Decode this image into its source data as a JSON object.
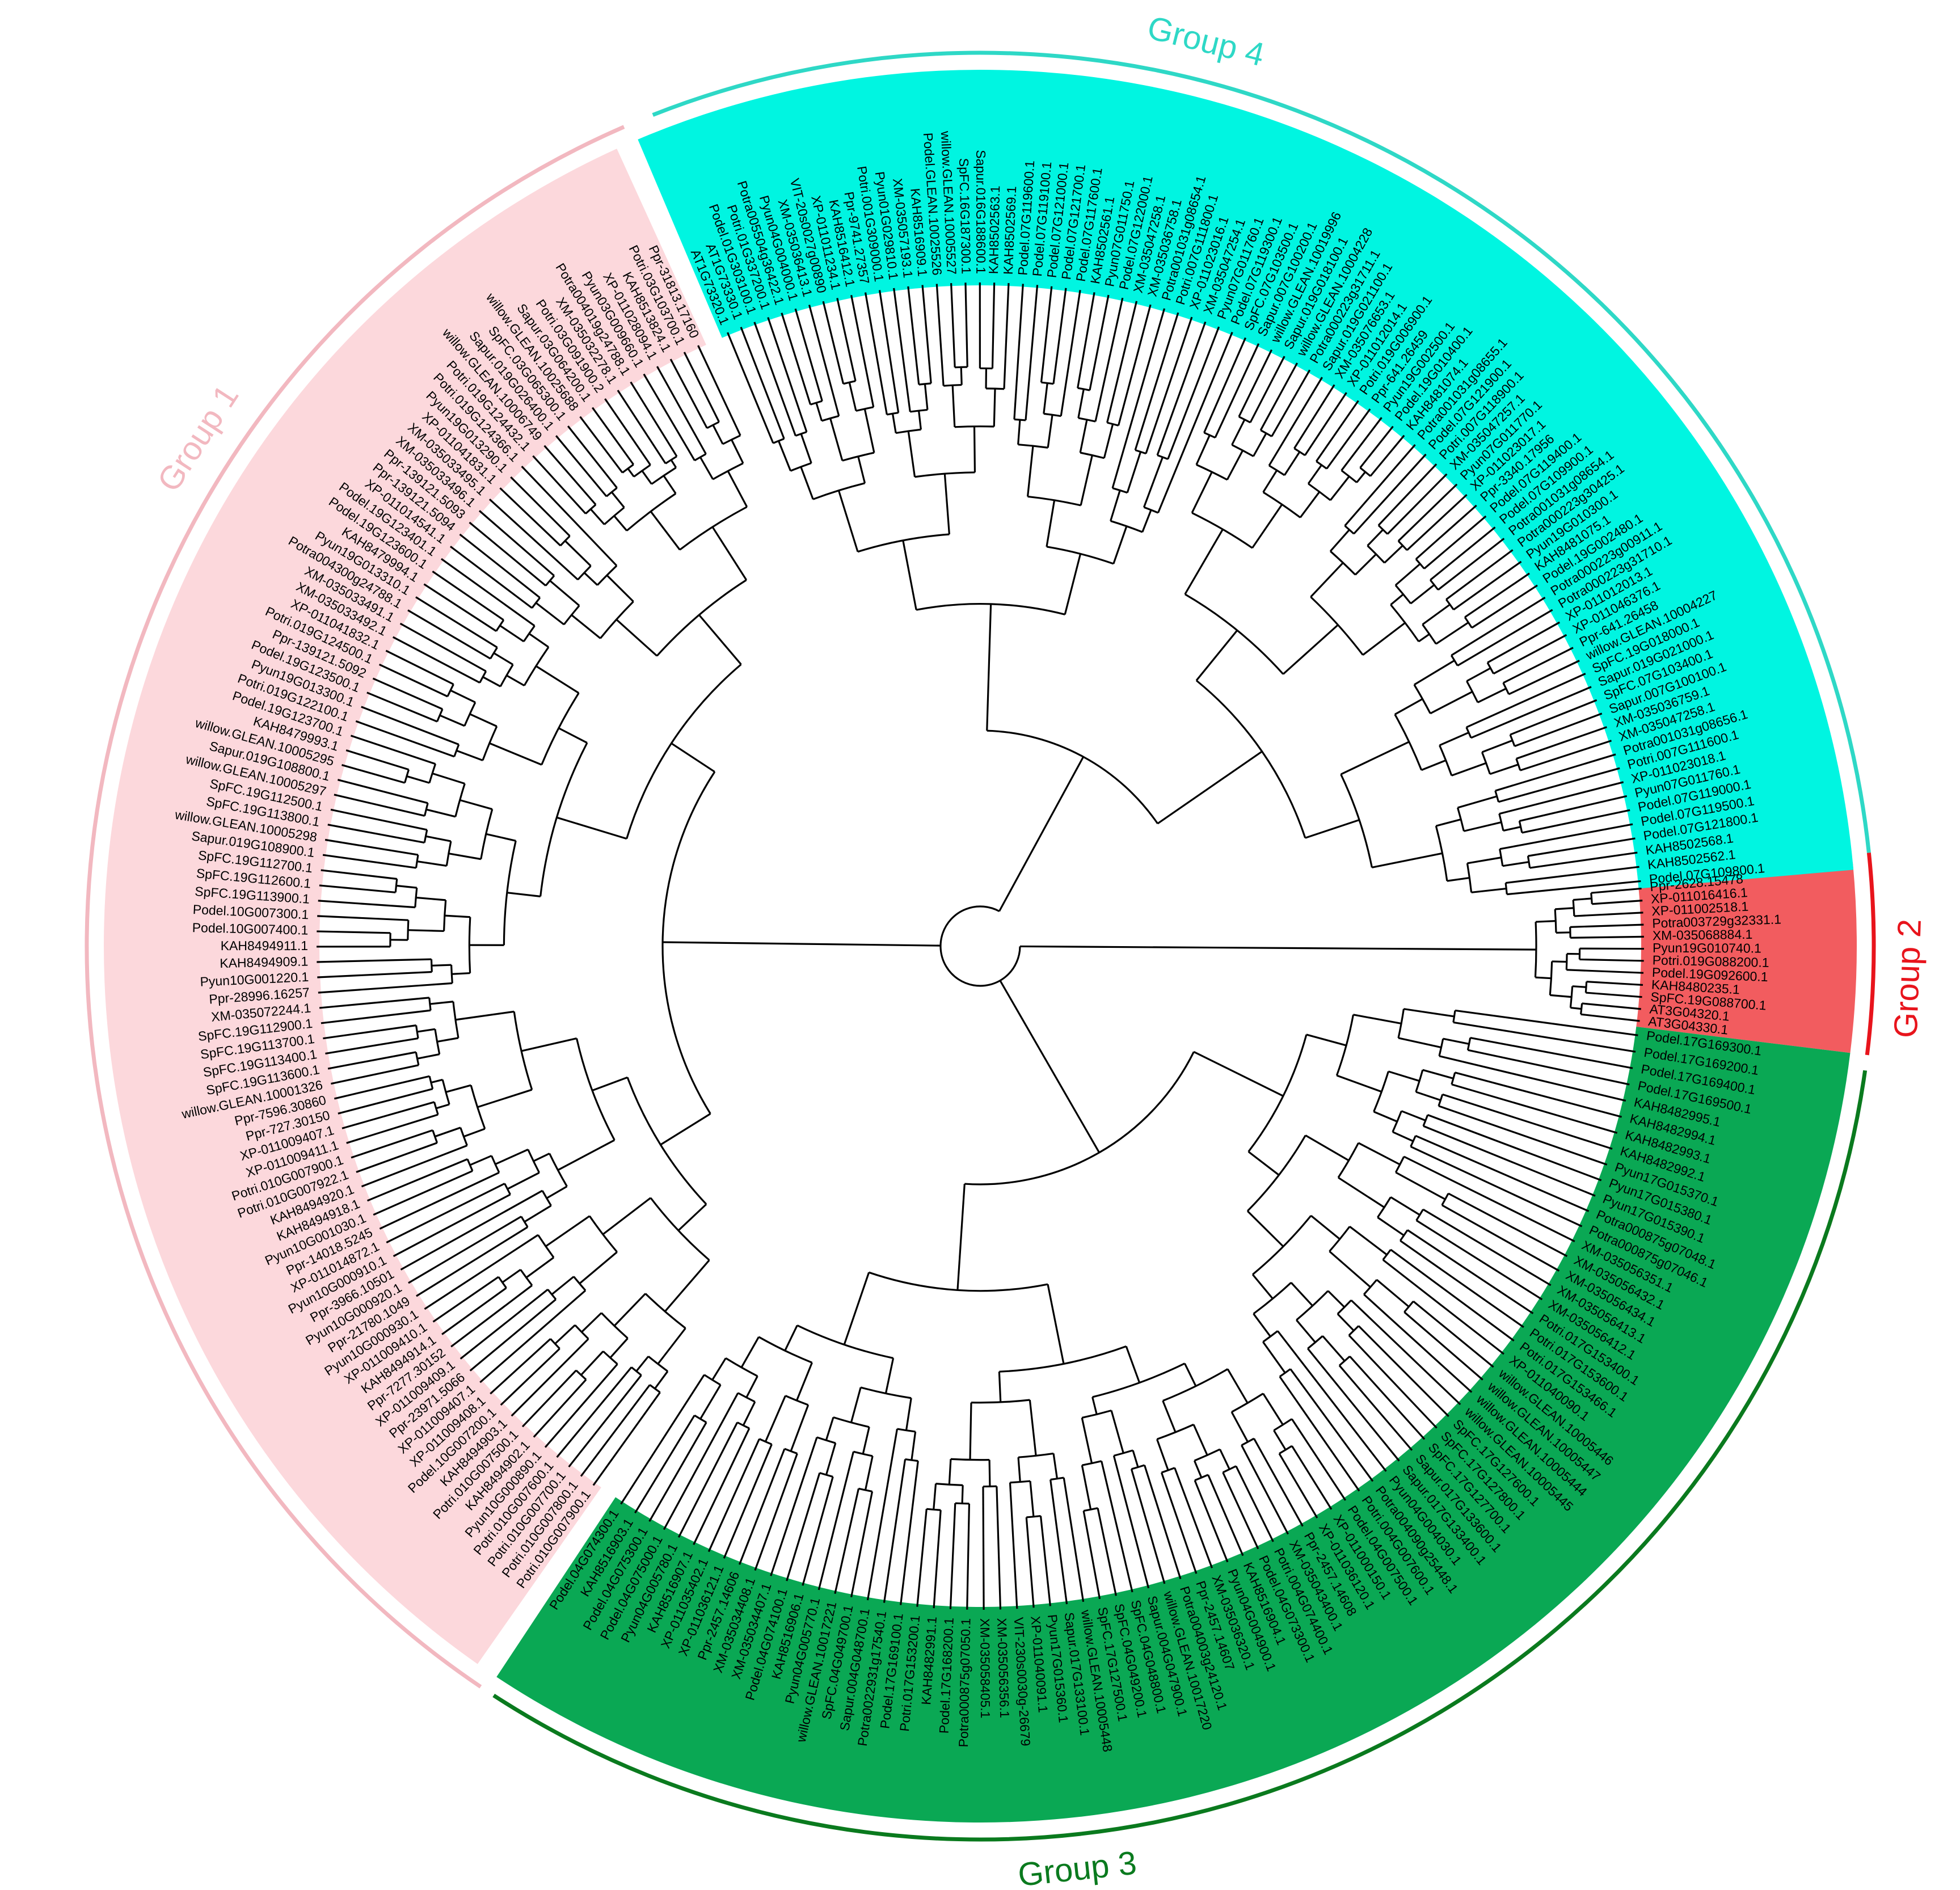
{
  "groups": [
    {
      "id": "g1",
      "label": "Group 1",
      "color": "#f2b8c0",
      "fill": "#fcd8dc",
      "tips": [
        "Potri.010G007900.1",
        "Potri.010G007800.1",
        "Potri.010G007700.1",
        "Potri.010G007600.1",
        "Pyun10G000890.1",
        "KAH8494902.1",
        "Potri.010G007500.1",
        "KAH8494903.1",
        "Podel.10G007200.1",
        "XP-011009408.1",
        "XP-011009407.1",
        "Ppr-23971.5066",
        "XP-011009409.1",
        "Ppr-7277.30152",
        "KAH8494914.1",
        "XP-011009410.1",
        "Pyun10G000930.1",
        "Ppr-21780.1049",
        "Pyun10G000920.1",
        "Ppr-3966.10501",
        "Pyun10G000910.1",
        "XP-011014872.1",
        "Ppr-14018.5245",
        "Pyun10G001030.1",
        "KAH8494918.1",
        "KAH8494920.1",
        "Potri.010G007922.1",
        "Potri.010G007900.1",
        "XP-011009411.1",
        "XP-011009407.1",
        "Ppr-727.30150",
        "Ppr-7596.30860",
        "willow.GLEAN.10001326",
        "SpFC.19G113600.1",
        "SpFC.19G113400.1",
        "SpFC.19G113700.1",
        "SpFC.19G112900.1",
        "XM-035072244.1",
        "Ppr-28996.16257",
        "Pyun10G001220.1",
        "KAH8494909.1",
        "KAH8494911.1",
        "Podel.10G007400.1",
        "Podel.10G007300.1",
        "SpFC.19G113900.1",
        "SpFC.19G112600.1",
        "SpFC.19G112700.1",
        "Sapur.019G108900.1",
        "willow.GLEAN.10005298",
        "SpFC.19G113800.1",
        "SpFC.19G112500.1",
        "willow.GLEAN.10005297",
        "Sapur.019G108800.1",
        "willow.GLEAN.10005295",
        "KAH8479993.1",
        "Podel.19G123700.1",
        "Potri.019G122100.1",
        "Pyun19G013300.1",
        "Podel.19G123500.1",
        "Ppr-139121.5092",
        "Potri.019G124500.1",
        "XP-011041832.1",
        "XM-035033492.1",
        "XM-035033491.1",
        "Potra004300g24788.1",
        "Pyun19G013310.1",
        "KAH8479994.1",
        "Podel.19G123600.1",
        "Podel.19G123401.1",
        "XP-011014541.1",
        "Ppr-139121.5094",
        "Ppr-139121.5093",
        "XM-035033496.1",
        "XM-035033495.1",
        "XP-011041831.1",
        "Pyun19G013290.1",
        "Potri.019G124366.1",
        "Potri.019G124432.1",
        "willow.GLEAN.10006749",
        "Sapur.019G026400.1",
        "SpFC.03G065300.1",
        "willow.GLEAN.10025688",
        "Sapur.03G064200.1",
        "Potri.03G091900.2",
        "XM-035032278.1",
        "Potra004019g24788.1",
        "Pyun03G009660.1",
        "XP-011028094.1",
        "KAH8513824.1",
        "Potri.03G103700.1",
        "Ppr-31813.17160"
      ]
    },
    {
      "id": "g2",
      "label": "Group 2",
      "color": "#e8141c",
      "fill": "#f25c5f",
      "tips": [
        "Ppr-2628.15478",
        "XP-011016416.1",
        "XP-011002518.1",
        "Potra003729g32331.1",
        "XM-035068884.1",
        "Pyun19G010740.1",
        "Potri.019G088200.1",
        "Podel.19G092600.1",
        "KAH8480235.1",
        "SpFC.19G088700.1",
        "AT3G04320.1",
        "AT3G04330.1"
      ]
    },
    {
      "id": "g3",
      "label": "Group 3",
      "color": "#0a7a1e",
      "fill": "#0aa854",
      "tips": [
        "Podel.17G169300.1",
        "Podel.17G169200.1",
        "Podel.17G169400.1",
        "Podel.17G169500.1",
        "KAH8482995.1",
        "KAH8482994.1",
        "KAH8482993.1",
        "KAH8482992.1",
        "Pyun17G015370.1",
        "Pyun17G015380.1",
        "Pyun17G015390.1",
        "Potra000875g07048.1",
        "Potra000875g07046.1",
        "XM-035056351.1",
        "XM-035056432.1",
        "XM-035056434.1",
        "XM-035056413.1",
        "XM-035056412.1",
        "Potri.017G153400.1",
        "Potri.017G153600.1",
        "Potri.017G153466.1",
        "XP-011040090.1",
        "willow.GLEAN.10005446",
        "willow.GLEAN.10005447",
        "willow.GLEAN.10005444",
        "willow.GLEAN.10005445",
        "SpFC.17G127600.1",
        "SpFC.17G127800.1",
        "SpFC.17G127700.1",
        "Sapur.017G133600.1",
        "Sapur.017G133400.1",
        "Pyun04G004030.1",
        "Potra004090g25448.1",
        "Potri.004G007600.1",
        "Podel.04G007500.1",
        "XP-011000150.1",
        "XP-011036120.1",
        "Ppr-2457.14608",
        "XM-035043400.1",
        "Potri.004G074400.1",
        "Podel.04G073300.1",
        "KAH8516904.1",
        "Pyun04G004900.1",
        "XM-035036320.1",
        "Ppr-2457.14607",
        "Potra004003g24120.1",
        "willow.GLEAN.10017220",
        "Sapur.004G047900.1",
        "SpFC.04G048800.1",
        "SpFC.04G049200.1",
        "SpFC.17G127500.1",
        "willow.GLEAN.10005448",
        "Sapur.017G133100.1",
        "Pyun17G015360.1",
        "XP-011040091.1",
        "VIT-230s0030g-26679",
        "XM-035056356.1",
        "XM-035058405.1",
        "Potra000875g07050.1",
        "Podel.17G168200.1",
        "KAH8482991.1",
        "Potri.017G153200.1",
        "Podel.17G169100.1",
        "Potra0022931g17540.1",
        "Sapur.004G048700.1",
        "SpFC.04G049700.1",
        "willow.GLEAN.10017221",
        "Pyun04G005770.1",
        "KAH8516906.1",
        "Podel.04G074100.1",
        "XM-035034407.1",
        "XM-035034408.1",
        "Ppr-2457.14606",
        "XP-011036121.1",
        "XP-011035402.1",
        "KAH8516907.1",
        "Pyun04G005780.1",
        "Podel.04G075000.1",
        "Podel.04G075300.1",
        "KAH8516903.1",
        "Podel.04G074300.1"
      ]
    },
    {
      "id": "g4",
      "label": "Group 4",
      "color": "#2ed8c6",
      "fill": "#00f5e1",
      "tips": [
        "AT1G73320.1",
        "AT1G73330.1",
        "Podel.01G303100.1",
        "Potri.01G337200.1",
        "Potra005504g36422.1",
        "Pyun04G004000.1",
        "XM-035036413.1",
        "VIT-20s0027g00890",
        "XP-011011234.1",
        "KAH8516412.1",
        "Ppr-9741.27357",
        "Potri.001G309000.1",
        "Pyun01G029810.1",
        "XM-035057193.1",
        "KAH8516909.1",
        "Podel.GLEAN.10025526",
        "willow.GLEAN.10005527",
        "SpFC.16G187300.1",
        "Sapur.016G188600.1",
        "KAH8502563.1",
        "KAH8502569.1",
        "Podel.07G119600.1",
        "Podel.07G119100.1",
        "Podel.07G121000.1",
        "Podel.07G121700.1",
        "Podel.07G117600.1",
        "KAH8502561.1",
        "Pyun07G011750.1",
        "Podel.07G122000.1",
        "XM-035047258.1",
        "XM-035036758.1",
        "Potra001031g08654.1",
        "Potri.007G111800.1",
        "XP-011023016.1",
        "XM-035047254.1",
        "Pyun07G011760.1",
        "Podel.07G119300.1",
        "SpFC.07G103500.1",
        "Sapur.007G100200.1",
        "willow.GLEAN.10019996",
        "Sapur.019G018100.1",
        "willow.GLEAN.10004228",
        "Potra000223g31711.1",
        "Sapur.019G021100.1",
        "XM-035076653.1",
        "XP-011012014.1",
        "Potri.019G006900.1",
        "Ppr-641.26459",
        "Pyun19G002500.1",
        "Podel.19G010400.1",
        "KAH8481074.1",
        "Potra001031g08655.1",
        "Podel.07G121900.1",
        "Potri.007G118900.1",
        "XM-035047257.1",
        "Pyun07G011770.1",
        "XP-011023017.1",
        "Ppr-3340.17956",
        "Podel.07G119400.1",
        "Podel.07G109900.1",
        "Potra001031g08654.1",
        "Potra000223g30425.1",
        "Pyun19G010300.1",
        "KAH8481075.1",
        "Podel.19G002480.1",
        "Potra000223g00911.1",
        "Potra000223g31710.1",
        "XP-011012013.1",
        "XP-011046376.1",
        "Ppr-641.26458",
        "willow.GLEAN.10004227",
        "SpFC.19G018000.1",
        "Sapur.019G021000.1",
        "SpFC.07G103400.1",
        "Sapur.007G100100.1",
        "XM-035036759.1",
        "XM-035047258.1",
        "Potra001031g08656.1",
        "Potri.007G111600.1",
        "XP-011023018.1",
        "Pyun07G011760.1",
        "Podel.07G119000.1",
        "Podel.07G119500.1",
        "Podel.07G121800.1",
        "KAH8502568.1",
        "KAH8502562.1",
        "Podel.07G109800.1"
      ]
    }
  ]
}
